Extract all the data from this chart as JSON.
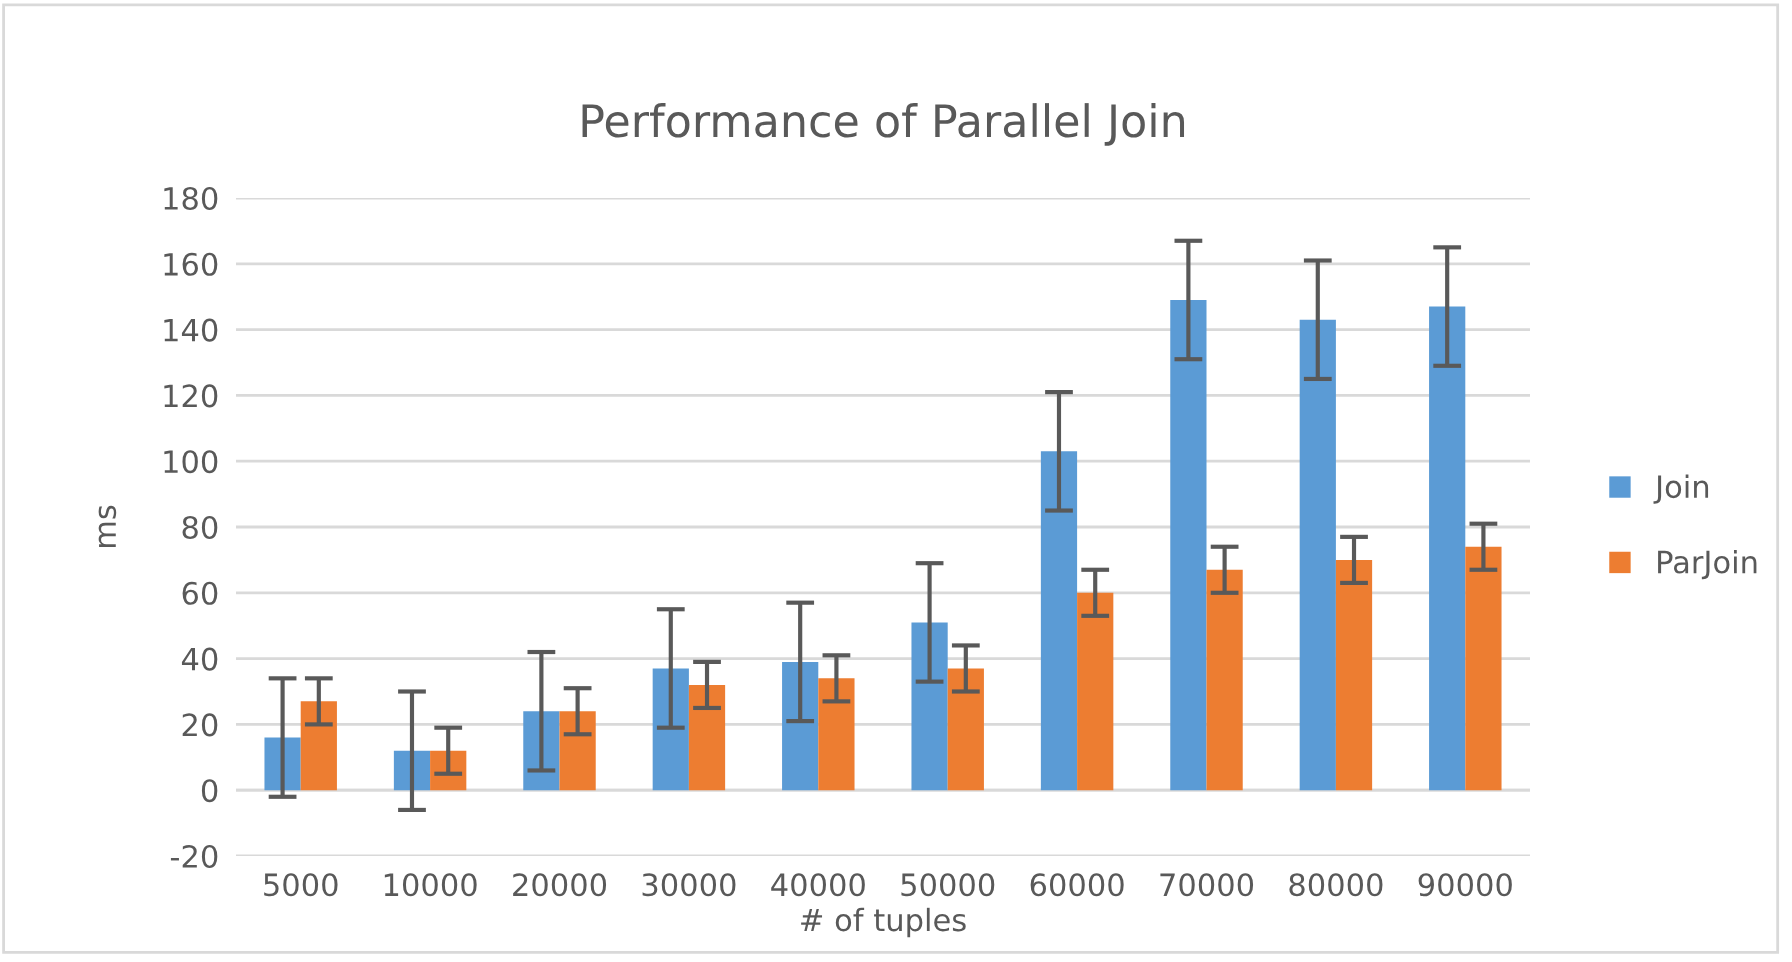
{
  "chart_data": {
    "type": "bar",
    "title": "Performance of Parallel Join",
    "xlabel": "# of tuples",
    "ylabel": "ms",
    "categories": [
      "5000",
      "10000",
      "20000",
      "30000",
      "40000",
      "50000",
      "60000",
      "70000",
      "80000",
      "90000"
    ],
    "series": [
      {
        "name": "Join",
        "color": "#5b9bd5",
        "values": [
          16,
          12,
          24,
          37,
          39,
          51,
          103,
          149,
          143,
          147
        ],
        "errors": [
          18,
          18,
          18,
          18,
          18,
          18,
          18,
          18,
          18,
          18
        ]
      },
      {
        "name": "ParJoin",
        "color": "#ed7d31",
        "values": [
          27,
          12,
          24,
          32,
          34,
          37,
          60,
          67,
          70,
          74
        ],
        "errors": [
          7,
          7,
          7,
          7,
          7,
          7,
          7,
          7,
          7,
          7
        ]
      }
    ],
    "ylim": [
      -20,
      180
    ],
    "yticks": [
      -20,
      0,
      20,
      40,
      60,
      80,
      100,
      120,
      140,
      160,
      180
    ],
    "grid": "y",
    "legend": "right"
  }
}
